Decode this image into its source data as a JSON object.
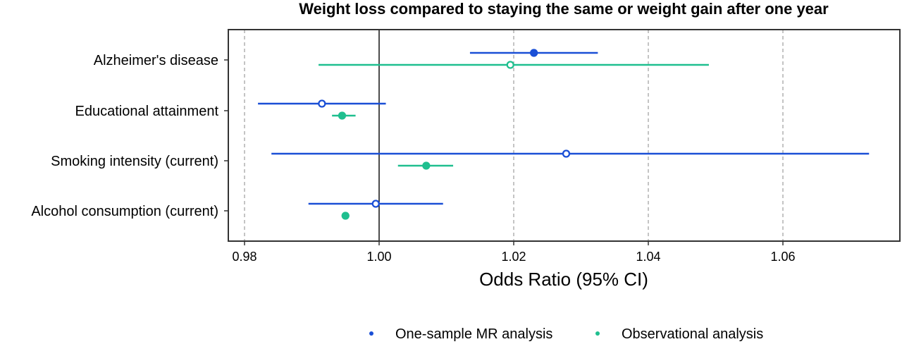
{
  "chart_data": {
    "type": "forest",
    "title": "Weight loss compared to staying the same or weight gain after one year",
    "xlabel": "Odds Ratio (95% CI)",
    "ylabel": "",
    "xlim": [
      0.98,
      1.078
    ],
    "xticks": [
      "0.98",
      "1.00",
      "1.02",
      "1.04",
      "1.06"
    ],
    "reference_line": 1.0,
    "grid": "vertical dashed at ticks",
    "legend_position": "bottom",
    "categories": [
      "Alzheimer's disease",
      "Educational attainment",
      "Smoking intensity (current)",
      "Alcohol consumption (current)"
    ],
    "series": [
      {
        "name": "One-sample MR analysis",
        "color": "#1a4fd6",
        "points": [
          {
            "category": "Alzheimer's disease",
            "or": 1.023,
            "lower": 1.0135,
            "upper": 1.0325,
            "filled": true
          },
          {
            "category": "Educational attainment",
            "or": 0.9915,
            "lower": 0.982,
            "upper": 1.001,
            "filled": false
          },
          {
            "category": "Smoking intensity (current)",
            "or": 1.0278,
            "lower": 0.984,
            "upper": 1.0728,
            "filled": false
          },
          {
            "category": "Alcohol consumption (current)",
            "or": 0.9995,
            "lower": 0.9895,
            "upper": 1.0095,
            "filled": false
          }
        ]
      },
      {
        "name": "Observational analysis",
        "color": "#1fbf8f",
        "points": [
          {
            "category": "Alzheimer's disease",
            "or": 1.0195,
            "lower": 0.991,
            "upper": 1.049,
            "filled": false
          },
          {
            "category": "Educational attainment",
            "or": 0.9945,
            "lower": 0.993,
            "upper": 0.9965,
            "filled": true
          },
          {
            "category": "Smoking intensity (current)",
            "or": 1.007,
            "lower": 1.0028,
            "upper": 1.011,
            "filled": true
          },
          {
            "category": "Alcohol consumption (current)",
            "or": 0.995,
            "lower": 0.995,
            "upper": 0.995,
            "filled": true
          }
        ]
      }
    ]
  }
}
